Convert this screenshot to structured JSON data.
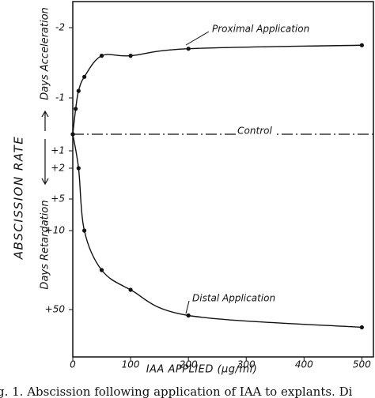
{
  "chart_data": {
    "type": "line",
    "x_label": "IAA APPLIED (μg/ml)",
    "y_label": "ABSCISSION RATE",
    "y_label_upper": "Days Acceleration",
    "y_label_lower": "Days Retardation",
    "control_label": "Control",
    "caption": "g. 1. Abscission following application of IAA to explants. Di",
    "xlim": [
      0,
      520
    ],
    "xticks": [
      0,
      100,
      200,
      300,
      400,
      500
    ],
    "yticks": [
      -2,
      -1,
      {
        "value": 1,
        "label": "+1"
      },
      {
        "value": 2,
        "label": "+2"
      },
      {
        "value": 5,
        "label": "+5"
      },
      {
        "value": 10,
        "label": "+10"
      },
      {
        "value": 50,
        "label": "+50"
      }
    ],
    "series": [
      {
        "name": "Proximal Application",
        "color": "#111111",
        "x": [
          0,
          5,
          10,
          20,
          50,
          100,
          200,
          500
        ],
        "values": [
          0,
          -0.7,
          -1.1,
          -1.3,
          -1.6,
          -1.6,
          -1.7,
          -1.75
        ]
      },
      {
        "name": "Distal Application",
        "color": "#111111",
        "x": [
          0,
          10,
          20,
          50,
          100,
          200,
          500
        ],
        "values": [
          0,
          2,
          10,
          30,
          40,
          53,
          59
        ]
      }
    ]
  }
}
